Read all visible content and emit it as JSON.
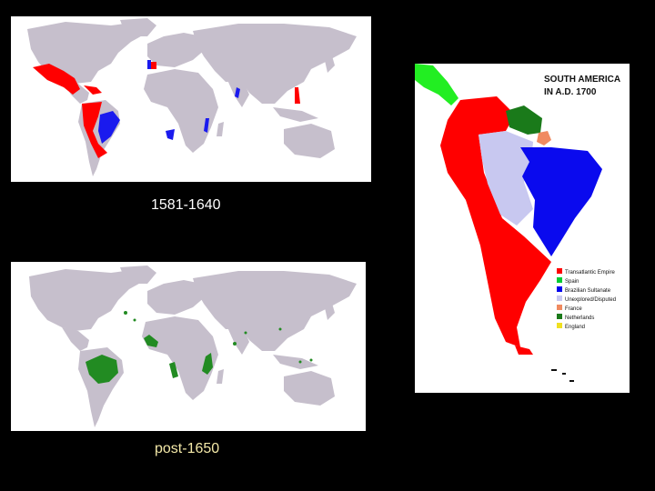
{
  "captions": {
    "top": "1581-1640",
    "bottom": "post-1650"
  },
  "south_america_map": {
    "title_line1": "SOUTH AMERICA",
    "title_line2": "IN A.D. 1700",
    "legend": [
      {
        "label": "Transatlantic Empire",
        "color": "#ff0000"
      },
      {
        "label": "Spain",
        "color": "#00cc33"
      },
      {
        "label": "Brazilian Sultanate",
        "color": "#0000ee"
      },
      {
        "label": "Unexplored/Disputed",
        "color": "#c8c8f0"
      },
      {
        "label": "France",
        "color": "#f08a60"
      },
      {
        "label": "Netherlands",
        "color": "#1a7a1a"
      },
      {
        "label": "England",
        "color": "#f0e020"
      }
    ]
  },
  "colors": {
    "background": "#000000",
    "land": "#c6bfcc",
    "red_territory": "#ff0000",
    "blue_territory": "#1a1aee",
    "green_territory": "#228b22"
  }
}
